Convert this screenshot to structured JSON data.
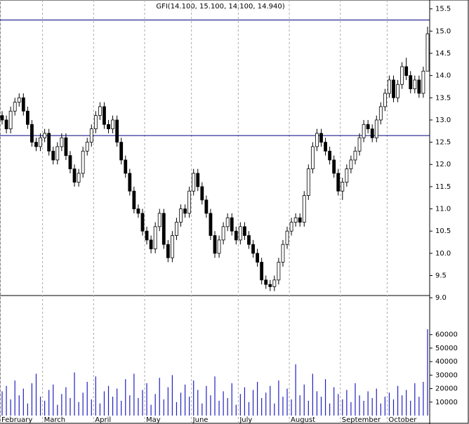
{
  "chart_data": [
    {
      "type": "candlestick",
      "title": "GFI(14.100, 15.100, 14.100, 14.940)",
      "candles": [
        [
          13.1,
          13.2,
          12.9,
          13.0
        ],
        [
          13.0,
          13.1,
          12.7,
          12.8
        ],
        [
          12.8,
          13.3,
          12.7,
          13.2
        ],
        [
          13.2,
          13.5,
          13.1,
          13.4
        ],
        [
          13.4,
          13.6,
          13.3,
          13.5
        ],
        [
          13.5,
          13.6,
          13.1,
          13.2
        ],
        [
          13.2,
          13.3,
          12.8,
          12.9
        ],
        [
          12.9,
          13.0,
          12.4,
          12.5
        ],
        [
          12.5,
          12.6,
          12.3,
          12.4
        ],
        [
          12.4,
          12.7,
          12.3,
          12.6
        ],
        [
          12.6,
          12.8,
          12.5,
          12.7
        ],
        [
          12.7,
          12.8,
          12.2,
          12.3
        ],
        [
          12.3,
          12.4,
          12.0,
          12.1
        ],
        [
          12.1,
          12.5,
          12.0,
          12.4
        ],
        [
          12.4,
          12.7,
          12.3,
          12.6
        ],
        [
          12.6,
          12.7,
          12.1,
          12.2
        ],
        [
          12.2,
          12.3,
          11.8,
          11.9
        ],
        [
          11.9,
          12.0,
          11.5,
          11.6
        ],
        [
          11.6,
          11.9,
          11.5,
          11.8
        ],
        [
          11.8,
          12.4,
          11.7,
          12.3
        ],
        [
          12.3,
          12.6,
          12.2,
          12.5
        ],
        [
          12.5,
          12.9,
          12.4,
          12.8
        ],
        [
          12.8,
          13.2,
          12.7,
          13.1
        ],
        [
          13.1,
          13.4,
          13.0,
          13.3
        ],
        [
          13.3,
          13.4,
          12.8,
          12.9
        ],
        [
          12.9,
          13.0,
          12.7,
          12.8
        ],
        [
          12.8,
          13.1,
          12.7,
          13.0
        ],
        [
          13.0,
          13.1,
          12.4,
          12.5
        ],
        [
          12.5,
          12.6,
          12.0,
          12.1
        ],
        [
          12.1,
          12.2,
          11.7,
          11.8
        ],
        [
          11.8,
          11.9,
          11.3,
          11.4
        ],
        [
          11.4,
          11.5,
          10.9,
          11.0
        ],
        [
          11.0,
          11.1,
          10.8,
          10.9
        ],
        [
          10.9,
          11.0,
          10.4,
          10.5
        ],
        [
          10.5,
          10.6,
          10.2,
          10.3
        ],
        [
          10.3,
          10.4,
          10.0,
          10.1
        ],
        [
          10.1,
          10.7,
          10.0,
          10.6
        ],
        [
          10.6,
          11.0,
          10.5,
          10.9
        ],
        [
          10.9,
          11.0,
          10.1,
          10.2
        ],
        [
          10.2,
          10.3,
          9.8,
          9.9
        ],
        [
          9.9,
          10.5,
          9.8,
          10.4
        ],
        [
          10.4,
          10.8,
          10.3,
          10.7
        ],
        [
          10.7,
          11.1,
          10.6,
          11.0
        ],
        [
          11.0,
          11.1,
          10.8,
          10.9
        ],
        [
          10.9,
          11.5,
          10.8,
          11.4
        ],
        [
          11.4,
          11.9,
          11.3,
          11.8
        ],
        [
          11.8,
          11.9,
          11.4,
          11.5
        ],
        [
          11.5,
          11.6,
          11.1,
          11.2
        ],
        [
          11.2,
          11.3,
          10.8,
          10.9
        ],
        [
          10.9,
          11.0,
          10.3,
          10.4
        ],
        [
          10.4,
          10.5,
          9.9,
          10.0
        ],
        [
          10.0,
          10.4,
          9.9,
          10.3
        ],
        [
          10.3,
          10.7,
          10.2,
          10.6
        ],
        [
          10.6,
          10.9,
          10.5,
          10.8
        ],
        [
          10.8,
          10.9,
          10.4,
          10.5
        ],
        [
          10.5,
          10.6,
          10.2,
          10.3
        ],
        [
          10.3,
          10.7,
          10.2,
          10.6
        ],
        [
          10.6,
          10.7,
          10.3,
          10.4
        ],
        [
          10.4,
          10.5,
          10.1,
          10.2
        ],
        [
          10.2,
          10.3,
          9.9,
          10.0
        ],
        [
          10.0,
          10.1,
          9.7,
          9.8
        ],
        [
          9.8,
          9.9,
          9.3,
          9.4
        ],
        [
          9.4,
          9.5,
          9.2,
          9.3
        ],
        [
          9.3,
          9.4,
          9.15,
          9.25
        ],
        [
          9.25,
          9.5,
          9.15,
          9.4
        ],
        [
          9.4,
          9.9,
          9.3,
          9.8
        ],
        [
          9.8,
          10.3,
          9.7,
          10.2
        ],
        [
          10.2,
          10.6,
          10.1,
          10.5
        ],
        [
          10.5,
          10.8,
          10.4,
          10.7
        ],
        [
          10.7,
          10.9,
          10.6,
          10.8
        ],
        [
          10.8,
          10.9,
          10.6,
          10.7
        ],
        [
          10.7,
          11.4,
          10.6,
          11.3
        ],
        [
          11.3,
          12.0,
          11.2,
          11.9
        ],
        [
          11.9,
          12.5,
          11.8,
          12.4
        ],
        [
          12.4,
          12.8,
          12.3,
          12.7
        ],
        [
          12.7,
          12.8,
          12.4,
          12.5
        ],
        [
          12.5,
          12.6,
          12.2,
          12.3
        ],
        [
          12.3,
          12.4,
          12.0,
          12.1
        ],
        [
          12.1,
          12.2,
          11.7,
          11.8
        ],
        [
          11.8,
          11.9,
          11.3,
          11.4
        ],
        [
          11.4,
          11.7,
          11.2,
          11.6
        ],
        [
          11.6,
          12.0,
          11.5,
          11.9
        ],
        [
          11.9,
          12.2,
          11.8,
          12.1
        ],
        [
          12.1,
          12.4,
          12.0,
          12.3
        ],
        [
          12.3,
          12.7,
          12.2,
          12.6
        ],
        [
          12.6,
          13.0,
          12.5,
          12.9
        ],
        [
          12.9,
          13.0,
          12.7,
          12.8
        ],
        [
          12.8,
          12.9,
          12.5,
          12.6
        ],
        [
          12.6,
          13.1,
          12.5,
          13.0
        ],
        [
          13.0,
          13.4,
          12.9,
          13.3
        ],
        [
          13.3,
          13.7,
          13.2,
          13.6
        ],
        [
          13.6,
          14.0,
          13.5,
          13.9
        ],
        [
          13.9,
          14.0,
          13.4,
          13.5
        ],
        [
          13.5,
          13.9,
          13.4,
          13.8
        ],
        [
          13.8,
          14.3,
          13.7,
          14.2
        ],
        [
          14.2,
          14.4,
          13.9,
          14.0
        ],
        [
          14.0,
          14.1,
          13.6,
          13.7
        ],
        [
          13.7,
          14.0,
          13.6,
          13.9
        ],
        [
          13.9,
          14.0,
          13.5,
          13.6
        ],
        [
          13.6,
          14.2,
          13.5,
          14.1
        ],
        [
          14.1,
          15.1,
          14.1,
          14.94
        ]
      ],
      "ylim": [
        9.05,
        15.7
      ],
      "yticks": [
        {
          "value": 9,
          "label": "9.0"
        },
        9.5,
        {
          "value": 10,
          "label": "10.0"
        },
        10.5,
        {
          "value": 11,
          "label": "11.0"
        },
        11.5,
        {
          "value": 12,
          "label": "12.0"
        },
        12.5,
        {
          "value": 13,
          "label": "13.0"
        },
        13.5,
        {
          "value": 14,
          "label": "14.0"
        },
        14.5,
        {
          "value": 15,
          "label": "15.0"
        },
        15.5
      ],
      "hlines": [
        15.25,
        12.65
      ],
      "up_color": "#ffffff",
      "down_color": "#000000"
    },
    {
      "type": "bar",
      "categories": [
        "February",
        null,
        null,
        null,
        null,
        null,
        null,
        null,
        null,
        null,
        "March",
        null,
        null,
        null,
        null,
        null,
        null,
        null,
        null,
        null,
        null,
        null,
        "April",
        null,
        null,
        null,
        null,
        null,
        null,
        null,
        null,
        null,
        null,
        null,
        "May",
        null,
        null,
        null,
        null,
        null,
        null,
        null,
        null,
        null,
        null,
        "June",
        null,
        null,
        null,
        null,
        null,
        null,
        null,
        null,
        null,
        null,
        "July",
        null,
        null,
        null,
        null,
        null,
        null,
        null,
        null,
        null,
        null,
        null,
        "August",
        null,
        null,
        null,
        null,
        null,
        null,
        null,
        null,
        null,
        null,
        null,
        "September",
        null,
        null,
        null,
        null,
        null,
        null,
        null,
        null,
        null,
        null,
        "October",
        null,
        null,
        null,
        null,
        null,
        null,
        null,
        null,
        null
      ],
      "values": [
        18000,
        22000,
        12000,
        26000,
        15000,
        20000,
        9000,
        24000,
        31000,
        14000,
        11000,
        19000,
        23000,
        8000,
        16000,
        21000,
        13000,
        32000,
        10000,
        17000,
        25000,
        12000,
        29000,
        9000,
        18000,
        22000,
        14000,
        20000,
        11000,
        27000,
        15000,
        31000,
        13000,
        19000,
        24000,
        8000,
        16000,
        28000,
        12000,
        21000,
        30000,
        10000,
        17000,
        23000,
        14000,
        26000,
        19000,
        9000,
        22000,
        15000,
        29000,
        11000,
        18000,
        13000,
        24000,
        8000,
        16000,
        21000,
        10000,
        19000,
        25000,
        13000,
        17000,
        22000,
        9000,
        26000,
        14000,
        20000,
        12000,
        38000,
        15000,
        23000,
        11000,
        31000,
        18000,
        14000,
        27000,
        9000,
        21000,
        16000,
        12000,
        19000,
        10000,
        24000,
        15000,
        11000,
        18000,
        13000,
        20000,
        9000,
        14000,
        17000,
        12000,
        22000,
        15000,
        19000,
        11000,
        24000,
        14000,
        25000,
        64000
      ],
      "color": "#2020c0",
      "ylim": [
        0,
        89000
      ],
      "yticks": [
        10000,
        20000,
        30000,
        40000,
        50000,
        60000
      ]
    }
  ]
}
